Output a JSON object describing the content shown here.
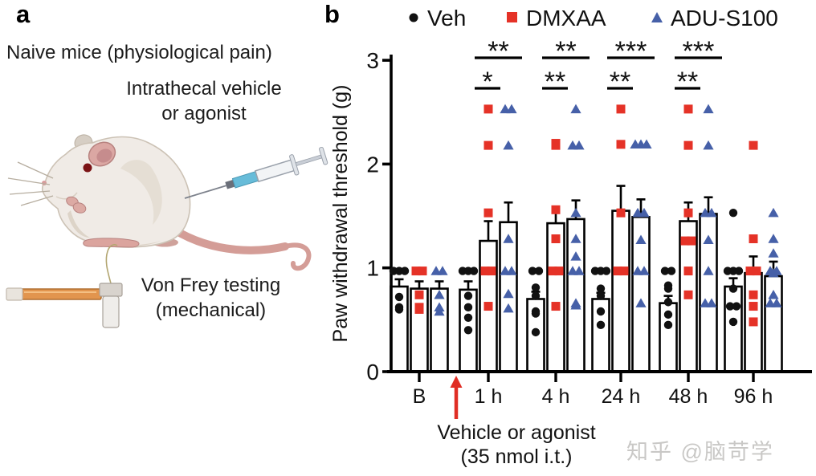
{
  "panel_a": {
    "label": "a",
    "title": "Naive mice (physiological pain)",
    "injection_label_line1": "Intrathecal vehicle",
    "injection_label_line2": "or agonist",
    "test_label_line1": "Von Frey testing",
    "test_label_line2": "(mechanical)"
  },
  "panel_b": {
    "label": "b",
    "legend": [
      {
        "name": "Veh",
        "marker": "circle",
        "color": "#111111"
      },
      {
        "name": "DMXAA",
        "marker": "square",
        "color": "#e53227"
      },
      {
        "name": "ADU-S100",
        "marker": "triangle",
        "color": "#4660a8"
      }
    ],
    "arrow_label_line1": "Vehicle or agonist",
    "arrow_label_line2": "(35 nmol i.t.)",
    "arrow_color": "#e02d24"
  },
  "watermark": "知乎 @脑苛学",
  "chart_data": {
    "type": "bar",
    "title": "",
    "ylabel": "Paw withdrawal threshold (g)",
    "ylim": [
      0,
      3
    ],
    "yticks": [
      0,
      1,
      2,
      3
    ],
    "categories": [
      "B",
      "1 h",
      "4 h",
      "24 h",
      "48 h",
      "96 h"
    ],
    "grid": false,
    "legend_position": "top",
    "series": [
      {
        "name": "Veh",
        "color": "#111111",
        "marker": "circle",
        "means": [
          0.82,
          0.79,
          0.7,
          0.7,
          0.66,
          0.82
        ],
        "sem": [
          0.07,
          0.08,
          0.07,
          0.06,
          0.07,
          0.08
        ],
        "points": [
          [
            0.97,
            0.97,
            0.97,
            0.72,
            0.62,
            0.6
          ],
          [
            0.97,
            0.97,
            0.97,
            0.73,
            0.62,
            0.52,
            0.4
          ],
          [
            0.97,
            0.97,
            0.81,
            0.73,
            0.58,
            0.56,
            0.38
          ],
          [
            0.97,
            0.97,
            0.97,
            0.8,
            0.73,
            0.58,
            0.45
          ],
          [
            0.97,
            0.97,
            0.83,
            0.8,
            0.67,
            0.55,
            0.45
          ],
          [
            1.53,
            0.97,
            0.97,
            0.97,
            0.8,
            0.63,
            0.63,
            0.48
          ]
        ]
      },
      {
        "name": "DMXAA",
        "color": "#e53227",
        "marker": "square",
        "means": [
          0.8,
          1.26,
          1.43,
          1.55,
          1.45,
          0.95
        ],
        "sem": [
          0.07,
          0.19,
          0.15,
          0.24,
          0.18,
          0.16
        ],
        "points": [
          [
            0.97,
            0.97,
            0.74,
            0.62,
            0.6
          ],
          [
            2.53,
            2.18,
            1.53,
            0.97,
            0.97,
            0.63
          ],
          [
            2.2,
            2.18,
            1.56,
            1.28,
            0.97,
            0.97,
            0.63
          ],
          [
            2.53,
            2.19,
            1.53,
            0.97,
            0.97
          ],
          [
            2.53,
            2.18,
            1.53,
            1.26,
            1.26,
            0.97,
            0.74
          ],
          [
            2.18,
            1.28,
            0.97,
            0.97,
            0.74,
            0.63,
            0.48
          ]
        ]
      },
      {
        "name": "ADU-S100",
        "color": "#4660a8",
        "marker": "triangle",
        "means": [
          0.8,
          1.44,
          1.47,
          1.49,
          1.52,
          0.92
        ],
        "sem": [
          0.07,
          0.19,
          0.18,
          0.17,
          0.16,
          0.14
        ],
        "points": [
          [
            0.97,
            0.97,
            0.74,
            0.62,
            0.58
          ],
          [
            2.53,
            2.53,
            2.18,
            1.28,
            0.97,
            0.97,
            0.75,
            0.61
          ],
          [
            2.53,
            2.18,
            2.18,
            1.53,
            1.28,
            1.11,
            0.97,
            0.97,
            0.66,
            0.64
          ],
          [
            2.19,
            2.19,
            2.19,
            1.53,
            1.53,
            1.27,
            0.97,
            0.97,
            0.66
          ],
          [
            2.53,
            2.18,
            1.53,
            1.53,
            1.27,
            0.97,
            0.66,
            0.66
          ],
          [
            1.53,
            1.28,
            1.14,
            0.97,
            0.97,
            0.95,
            0.74,
            0.66,
            0.66
          ]
        ]
      }
    ],
    "significance": [
      {
        "category": "1 h",
        "category_index": 1,
        "inner_pair": [
          "Veh",
          "DMXAA"
        ],
        "inner_label": "*",
        "outer_pair": [
          "Veh",
          "ADU-S100"
        ],
        "outer_label": "**"
      },
      {
        "category": "4 h",
        "category_index": 2,
        "inner_pair": [
          "Veh",
          "DMXAA"
        ],
        "inner_label": "**",
        "outer_pair": [
          "Veh",
          "ADU-S100"
        ],
        "outer_label": "**"
      },
      {
        "category": "24 h",
        "category_index": 3,
        "inner_pair": [
          "Veh",
          "DMXAA"
        ],
        "inner_label": "**",
        "outer_pair": [
          "Veh",
          "ADU-S100"
        ],
        "outer_label": "***"
      },
      {
        "category": "48 h",
        "category_index": 4,
        "inner_pair": [
          "Veh",
          "DMXAA"
        ],
        "inner_label": "**",
        "outer_pair": [
          "Veh",
          "ADU-S100"
        ],
        "outer_label": "***"
      }
    ],
    "x_axis_annotation": {
      "text_line1": "Vehicle or agonist",
      "text_line2": "(35 nmol i.t.)",
      "arrow_between": [
        "B",
        "1 h"
      ]
    }
  }
}
